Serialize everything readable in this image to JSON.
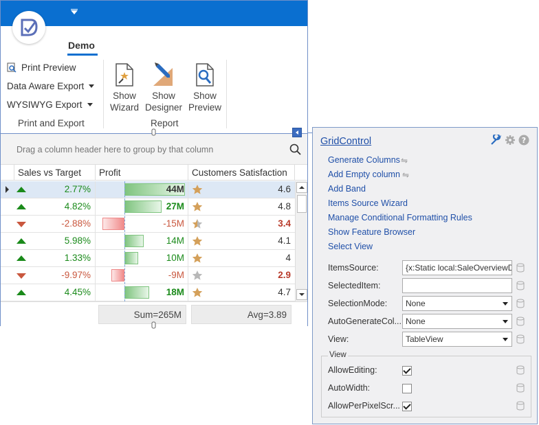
{
  "ribbon": {
    "tab": "Demo",
    "print_export": {
      "items": [
        "Print Preview",
        "Data Aware Export",
        "WYSIWYG Export"
      ],
      "label": "Print and Export"
    },
    "report": {
      "buttons": [
        {
          "line1": "Show",
          "line2": "Wizard"
        },
        {
          "line1": "Show",
          "line2": "Designer"
        },
        {
          "line1": "Show",
          "line2": "Preview"
        }
      ],
      "label": "Report"
    }
  },
  "grid": {
    "group_panel_text": "Drag a column header here to group by that column",
    "columns": [
      "Sales vs Target",
      "Profit",
      "Customers Satisfaction"
    ],
    "rows": [
      {
        "pct": "2.77%",
        "dir": "up",
        "profit": "44M",
        "profit_value": 44,
        "sat": "4.6",
        "sat_low": false,
        "star": "full"
      },
      {
        "pct": "4.82%",
        "dir": "up",
        "profit": "27M",
        "profit_value": 27,
        "sat": "4.8",
        "sat_low": false,
        "star": "full"
      },
      {
        "pct": "-2.88%",
        "dir": "down",
        "profit": "-15M",
        "profit_value": -15,
        "sat": "3.4",
        "sat_low": true,
        "star": "half"
      },
      {
        "pct": "5.98%",
        "dir": "up",
        "profit": "14M",
        "profit_value": 14,
        "sat": "4.1",
        "sat_low": false,
        "star": "full"
      },
      {
        "pct": "1.33%",
        "dir": "up",
        "profit": "10M",
        "profit_value": 10,
        "sat": "4",
        "sat_low": false,
        "star": "full"
      },
      {
        "pct": "-9.97%",
        "dir": "down",
        "profit": "-9M",
        "profit_value": -9,
        "sat": "2.9",
        "sat_low": true,
        "star": "empty"
      },
      {
        "pct": "4.45%",
        "dir": "up",
        "profit": "18M",
        "profit_value": 18,
        "sat": "4.7",
        "sat_low": false,
        "star": "full"
      }
    ],
    "sum_summary": "Sum=265M",
    "avg_summary": "Avg=3.89"
  },
  "panel": {
    "title": "GridControl",
    "actions": [
      "Generate Columns",
      "Add Empty column",
      "Add Band",
      "Items Source Wizard",
      "Manage Conditional Formatting Rules",
      "Show Feature Browser",
      "Select View"
    ],
    "properties": [
      {
        "label": "ItemsSource:",
        "value": "{x:Static local:SaleOverviewDa",
        "type": "text"
      },
      {
        "label": "SelectedItem:",
        "value": "",
        "type": "text"
      },
      {
        "label": "SelectionMode:",
        "value": "None",
        "type": "select"
      },
      {
        "label": "AutoGenerateCol...",
        "value": "None",
        "type": "select"
      },
      {
        "label": "View:",
        "value": "TableView",
        "type": "select"
      }
    ],
    "view_group": {
      "legend": "View",
      "items": [
        {
          "label": "AllowEditing:",
          "checked": true
        },
        {
          "label": "AutoWidth:",
          "checked": false
        },
        {
          "label": "AllowPerPixelScr...",
          "checked": true
        }
      ]
    }
  },
  "colors": {
    "accent": "#0a6fd0",
    "positive": "#1a8a1a",
    "negative": "#c9573e",
    "link": "#1f4fa8"
  }
}
